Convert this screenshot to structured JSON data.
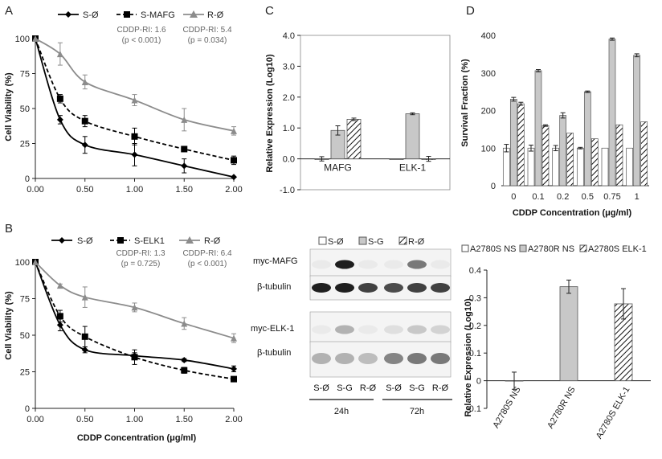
{
  "figure": {
    "panel_letters": [
      "A",
      "B",
      "C",
      "D"
    ],
    "blot": {
      "labels": [
        "myc-MAFG",
        "β-tubulin",
        "myc-ELK-1",
        "β-tubulin"
      ],
      "lanes": [
        "S-Ø",
        "S-G",
        "R-Ø",
        "S-Ø",
        "S-G",
        "R-Ø"
      ],
      "timepoints": [
        "24h",
        "72h"
      ],
      "band_intensity": [
        [
          0.05,
          0.95,
          0.05,
          0.05,
          0.55,
          0.05
        ],
        [
          0.95,
          0.95,
          0.8,
          0.75,
          0.8,
          0.8
        ],
        [
          0.05,
          0.3,
          0.05,
          0.1,
          0.2,
          0.15
        ],
        [
          0.3,
          0.3,
          0.25,
          0.5,
          0.55,
          0.55
        ]
      ]
    }
  },
  "colors": {
    "black": "#000000",
    "gray": "#8c8c8c",
    "bar_gray": "#c8c8c8",
    "bar_edge": "#555555"
  },
  "chart_data": [
    {
      "type": "line",
      "panel": "A",
      "title": "",
      "xlabel": "",
      "ylabel": "Cell Viability (%)",
      "x": [
        0,
        0.25,
        0.5,
        1.0,
        1.5,
        2.0
      ],
      "xlim": [
        0,
        2
      ],
      "ylim": [
        0,
        100
      ],
      "xticks": [
        "0.00",
        "0.50",
        "1.00",
        "1.50",
        "2.00"
      ],
      "yticks": [
        "0",
        "25",
        "50",
        "75",
        "100"
      ],
      "series": [
        {
          "name": "S-Ø",
          "marker": "diamond",
          "style": "solid",
          "color": "#000000",
          "values": [
            100,
            42,
            24,
            17,
            9,
            1
          ],
          "errors": [
            0,
            3,
            6,
            8,
            5,
            0
          ]
        },
        {
          "name": "S-MAFG",
          "marker": "square",
          "style": "dashed",
          "color": "#000000",
          "values": [
            100,
            57,
            41,
            30,
            21,
            13
          ],
          "errors": [
            0,
            3,
            4,
            6,
            0,
            3
          ]
        },
        {
          "name": "R-Ø",
          "marker": "triangle",
          "style": "solid",
          "color": "#8c8c8c",
          "values": [
            100,
            89,
            69,
            56,
            42,
            34
          ],
          "errors": [
            0,
            8,
            5,
            4,
            8,
            3
          ]
        }
      ],
      "annotations": [
        {
          "line1": "CDDP-RI: 1.6",
          "line2": "(p < 0.001)"
        },
        {
          "line1": "CDDP-RI: 5.4",
          "line2": "(p = 0.034)"
        }
      ]
    },
    {
      "type": "line",
      "panel": "B",
      "title": "",
      "xlabel": "CDDP Concentration  (μg/ml)",
      "ylabel": "Cell Viability (%)",
      "x": [
        0,
        0.25,
        0.5,
        1.0,
        1.5,
        2.0
      ],
      "xlim": [
        0,
        2
      ],
      "ylim": [
        0,
        100
      ],
      "xticks": [
        "0.00",
        "0.50",
        "1.00",
        "1.50",
        "2.00"
      ],
      "yticks": [
        "0",
        "25",
        "50",
        "75",
        "100"
      ],
      "series": [
        {
          "name": "S-Ø",
          "marker": "diamond",
          "style": "solid",
          "color": "#000000",
          "values": [
            100,
            57,
            40,
            36,
            33,
            27
          ],
          "errors": [
            0,
            4,
            2,
            2,
            1,
            2
          ]
        },
        {
          "name": "S-ELK1",
          "marker": "square",
          "style": "dashed",
          "color": "#000000",
          "values": [
            100,
            63,
            49,
            35,
            26,
            20
          ],
          "errors": [
            0,
            4,
            7,
            5,
            2,
            0
          ]
        },
        {
          "name": "R-Ø",
          "marker": "triangle",
          "style": "solid",
          "color": "#8c8c8c",
          "values": [
            100,
            84,
            76,
            69,
            58,
            48
          ],
          "errors": [
            0,
            1,
            7,
            3,
            4,
            3
          ]
        }
      ],
      "annotations": [
        {
          "line1": "CDDP-RI: 1.3",
          "line2": "(p = 0.725)"
        },
        {
          "line1": "CDDP-RI: 6.4",
          "line2": "(p < 0.001)"
        }
      ]
    },
    {
      "type": "bar",
      "panel": "C",
      "title": "",
      "xlabel": "",
      "ylabel": "Relative Expression (Log10)",
      "categories": [
        "MAFG",
        "ELK-1"
      ],
      "ylim": [
        -1,
        4
      ],
      "yticks": [
        "-1.0",
        "0.0",
        "1.0",
        "2.0",
        "3.0",
        "4.0"
      ],
      "series": [
        {
          "name": "S-Ø",
          "fill": "white",
          "values": [
            0.0,
            0.0
          ],
          "errors": [
            0.07,
            0.0
          ]
        },
        {
          "name": "S-G",
          "fill": "gray",
          "values": [
            0.92,
            1.46
          ],
          "errors": [
            0.15,
            0.03
          ]
        },
        {
          "name": "R-Ø",
          "fill": "hatch",
          "values": [
            1.28,
            0.0
          ],
          "errors": [
            0.04,
            0.08
          ]
        }
      ]
    },
    {
      "type": "bar",
      "panel": "D-top",
      "title": "",
      "xlabel": "CDDP Concentration (μg/ml)",
      "ylabel": "Survival Fraction (%)",
      "categories": [
        "0",
        "0.1",
        "0.2",
        "0.5",
        "0.75",
        "1"
      ],
      "ylim": [
        0,
        400
      ],
      "yticks": [
        "0",
        "100",
        "200",
        "300",
        "400"
      ],
      "series": [
        {
          "name": "S-Ø",
          "fill": "white",
          "values": [
            100,
            100,
            100,
            100,
            100,
            100
          ],
          "errors": [
            10,
            8,
            7,
            2,
            0,
            0
          ]
        },
        {
          "name": "S-G",
          "fill": "gray",
          "values": [
            230,
            306,
            187,
            250,
            390,
            347
          ],
          "errors": [
            5,
            3,
            7,
            2,
            3,
            4
          ]
        },
        {
          "name": "R-Ø",
          "fill": "hatch",
          "values": [
            218,
            160,
            140,
            125,
            162,
            170
          ],
          "errors": [
            4,
            2,
            0,
            0,
            0,
            0
          ]
        }
      ]
    },
    {
      "type": "bar",
      "panel": "D-bottom",
      "title": "",
      "xlabel": "",
      "ylabel": "Relative Expression (Log10)",
      "categories": [
        "A2780S NS",
        "A2780R NS",
        "A2780S ELK-1"
      ],
      "ylim": [
        -0.1,
        0.4
      ],
      "yticks": [
        "-0.1",
        "0",
        "0.1",
        "0.2",
        "0.3",
        "0.4"
      ],
      "legend": [
        "A2780S NS",
        "A2780R NS",
        "A2780S ELK-1"
      ],
      "fills": [
        "white",
        "gray",
        "hatch"
      ],
      "values": [
        0.0,
        0.34,
        0.278
      ],
      "errors": [
        0.031,
        0.024,
        0.055
      ]
    }
  ]
}
